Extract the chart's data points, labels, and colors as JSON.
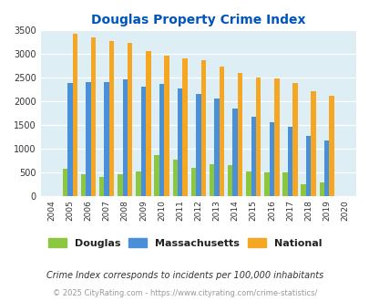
{
  "title": "Douglas Property Crime Index",
  "years": [
    2004,
    2005,
    2006,
    2007,
    2008,
    2009,
    2010,
    2011,
    2012,
    2013,
    2014,
    2015,
    2016,
    2017,
    2018,
    2019,
    2020
  ],
  "douglas": [
    0,
    575,
    460,
    400,
    455,
    510,
    860,
    760,
    590,
    675,
    645,
    510,
    490,
    490,
    240,
    280,
    0
  ],
  "massachusetts": [
    0,
    2380,
    2400,
    2400,
    2450,
    2310,
    2360,
    2260,
    2160,
    2050,
    1850,
    1670,
    1560,
    1460,
    1260,
    1160,
    0
  ],
  "national": [
    0,
    3420,
    3340,
    3270,
    3220,
    3050,
    2960,
    2910,
    2860,
    2720,
    2600,
    2500,
    2470,
    2380,
    2210,
    2120,
    0
  ],
  "douglas_color": "#8dc63f",
  "massachusetts_color": "#4a90d9",
  "national_color": "#f5a623",
  "bg_color": "#ddeef4",
  "title_color": "#0055bb",
  "ylabel_max": 3500,
  "yticks": [
    0,
    500,
    1000,
    1500,
    2000,
    2500,
    3000,
    3500
  ],
  "legend_labels": [
    "Douglas",
    "Massachusetts",
    "National"
  ],
  "footnote1": "Crime Index corresponds to incidents per 100,000 inhabitants",
  "footnote2": "© 2025 CityRating.com - https://www.cityrating.com/crime-statistics/",
  "footnote1_color": "#333333",
  "footnote2_color": "#999999"
}
